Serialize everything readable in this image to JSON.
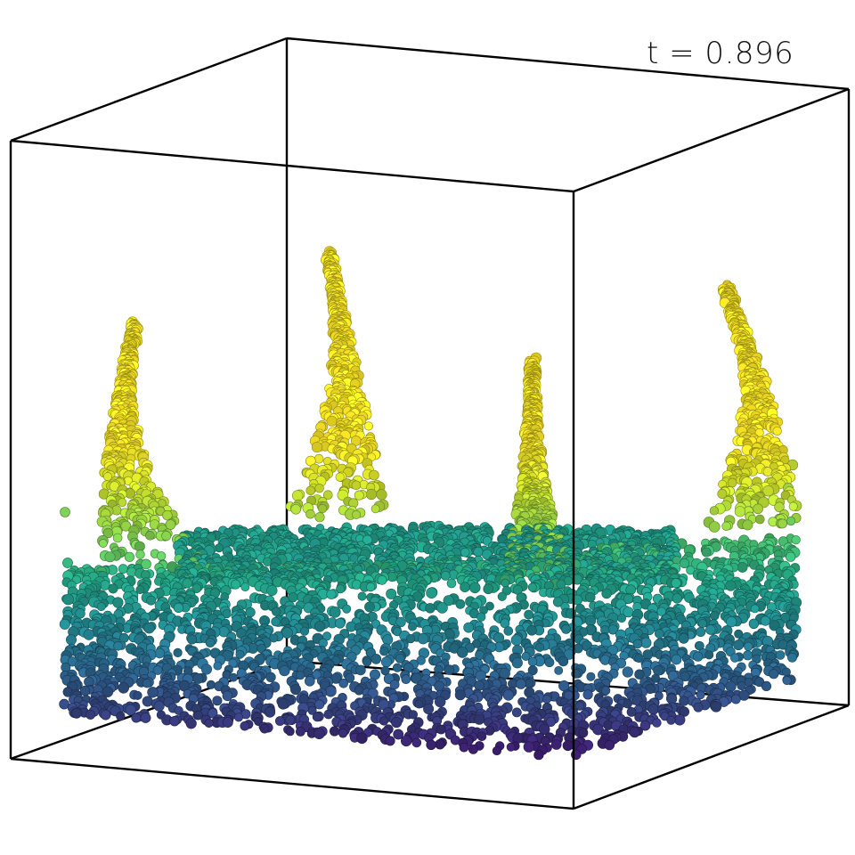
{
  "time_label": "t = 0.896",
  "colors": {
    "background": "#ffffff",
    "box_edge": "#000000",
    "colormap": [
      "#3b1f6e",
      "#33467f",
      "#29678c",
      "#20858b",
      "#22a284",
      "#46b96a",
      "#8fcf46",
      "#cbdc2a",
      "#f4e126",
      "#fde725"
    ]
  },
  "icons": [
    "bounding-box-frame",
    "particle-fluid"
  ]
}
